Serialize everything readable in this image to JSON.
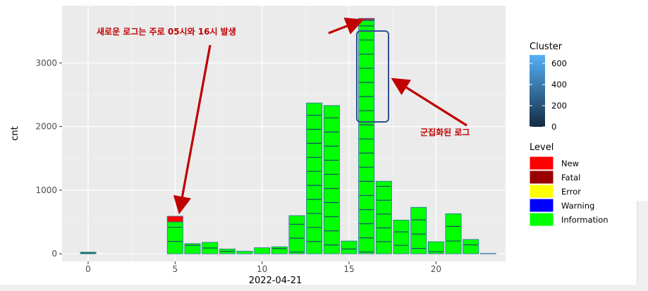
{
  "chart_data": {
    "type": "bar",
    "xlabel": "2022-04-21",
    "ylabel": "cnt",
    "x_ticks": [
      0,
      5,
      10,
      15,
      20
    ],
    "y_ticks": [
      0,
      1000,
      2000,
      3000
    ],
    "xlim": [
      -1.5,
      24
    ],
    "ylim": [
      -120,
      3900
    ],
    "grid": true,
    "x": [
      0,
      5,
      6,
      7,
      8,
      9,
      10,
      11,
      12,
      13,
      14,
      15,
      16,
      17,
      18,
      19,
      20,
      21,
      22,
      23
    ],
    "series": [
      {
        "name": "New",
        "values": [
          0,
          90,
          0,
          0,
          0,
          0,
          0,
          0,
          0,
          0,
          0,
          0,
          20,
          0,
          0,
          0,
          0,
          0,
          0,
          0
        ]
      },
      {
        "name": "Fatal",
        "values": [
          0,
          0,
          0,
          0,
          0,
          0,
          0,
          0,
          0,
          0,
          0,
          0,
          15,
          0,
          0,
          0,
          0,
          0,
          0,
          0
        ]
      },
      {
        "name": "Error",
        "values": [
          0,
          0,
          0,
          0,
          0,
          0,
          0,
          0,
          0,
          0,
          0,
          0,
          0,
          0,
          0,
          0,
          0,
          0,
          0,
          0
        ]
      },
      {
        "name": "Warning",
        "values": [
          0,
          0,
          0,
          0,
          0,
          0,
          0,
          0,
          0,
          0,
          0,
          0,
          0,
          0,
          0,
          0,
          0,
          0,
          0,
          0
        ]
      },
      {
        "name": "Information",
        "values": [
          25,
          500,
          160,
          180,
          75,
          40,
          95,
          110,
          600,
          2370,
          2330,
          200,
          3665,
          1140,
          530,
          730,
          190,
          630,
          225,
          5
        ]
      }
    ],
    "totals": [
      25,
      590,
      160,
      180,
      75,
      40,
      95,
      110,
      600,
      2370,
      2330,
      200,
      3700,
      1140,
      530,
      730,
      190,
      630,
      225,
      5
    ],
    "cluster_legend": {
      "title": "Cluster",
      "ticks": [
        0,
        200,
        400,
        600
      ],
      "colors": [
        "#132b43",
        "#56b1f7"
      ]
    },
    "level_legend": {
      "title": "Level",
      "items": [
        {
          "label": "New",
          "color": "#ff0000"
        },
        {
          "label": "Fatal",
          "color": "#990000"
        },
        {
          "label": "Error",
          "color": "#ffff00"
        },
        {
          "label": "Warning",
          "color": "#0000ff"
        },
        {
          "label": "Information",
          "color": "#00ff00"
        }
      ]
    },
    "annotations": [
      {
        "text": "새로운 로그는 주로 05시와 16시 발생",
        "color": "#c00000"
      },
      {
        "text": "군집화된 로그",
        "color": "#c00000"
      }
    ],
    "colors": {
      "panel": "#ebebeb",
      "grid_major": "#ffffff",
      "grid_minor": "#f5f5f5",
      "highlight_box": "#2f4f8f"
    }
  }
}
